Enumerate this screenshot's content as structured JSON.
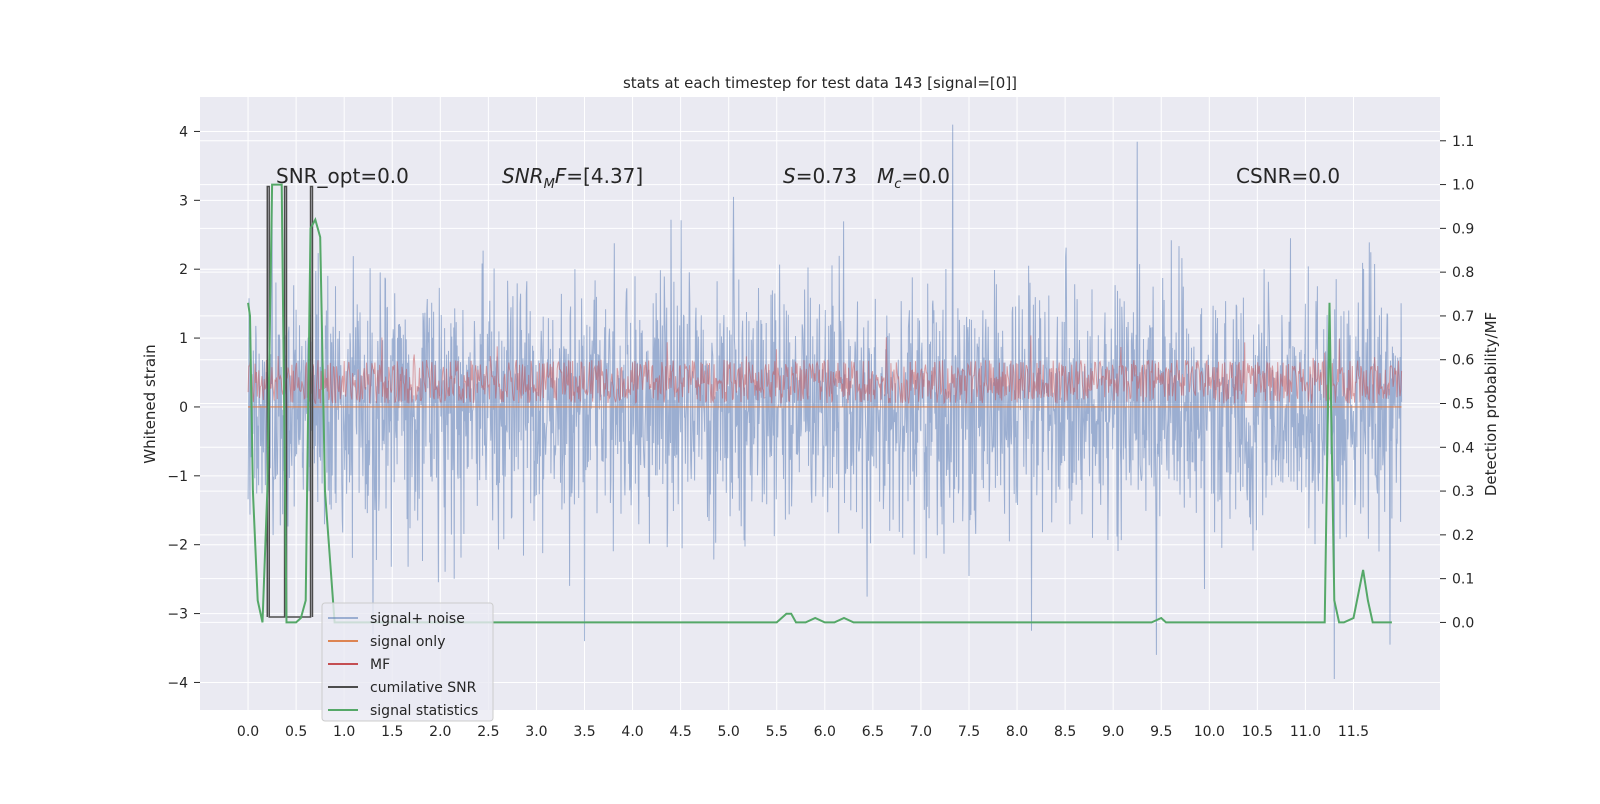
{
  "chart_data": {
    "type": "line",
    "title": "stats at each timestep for test data 143 [signal=[0]]",
    "xlabel": "",
    "ylabel": "Whitened strain",
    "ylabel_right": "Detection probability/MF",
    "xlim": [
      -0.5,
      12.4
    ],
    "ylim": [
      -4.4,
      4.5
    ],
    "ylim_right": [
      -0.2,
      1.2
    ],
    "x_ticks": [
      "0.0",
      "0.5",
      "1.0",
      "1.5",
      "2.0",
      "2.5",
      "3.0",
      "3.5",
      "4.0",
      "4.5",
      "5.0",
      "5.5",
      "6.0",
      "6.5",
      "7.0",
      "7.5",
      "8.0",
      "8.5",
      "9.0",
      "9.5",
      "10.0",
      "10.5",
      "11.0",
      "11.5"
    ],
    "y_ticks_left": [
      "4",
      "3",
      "2",
      "1",
      "0",
      "−1",
      "−2",
      "−3",
      "−4"
    ],
    "y_ticks_right": [
      "1.1",
      "1.0",
      "0.9",
      "0.8",
      "0.7",
      "0.6",
      "0.5",
      "0.4",
      "0.3",
      "0.2",
      "0.1",
      "0.0"
    ],
    "grid": true,
    "legend_position": "lower-left",
    "annotations": {
      "snr_opt": "SNR_opt=0.0",
      "snr_mf": "=[4.37]",
      "s_value": "=0.73",
      "mc_value": "=0.0",
      "csnr": "CSNR=0.0"
    },
    "series": [
      {
        "name": "signal+ noise",
        "color": "#4c72b0",
        "axis": "left",
        "x_range": [
          0.0,
          12.0
        ],
        "envelope_typical": [
          -2.0,
          2.0
        ],
        "spikes": [
          [
            0.25,
            3.2
          ],
          [
            0.4,
            -3.0
          ],
          [
            1.3,
            -3.3
          ],
          [
            3.5,
            -3.4
          ],
          [
            5.05,
            3.05
          ],
          [
            7.33,
            4.1
          ],
          [
            8.15,
            -3.25
          ],
          [
            9.25,
            3.85
          ],
          [
            9.45,
            -3.6
          ],
          [
            11.3,
            -3.95
          ],
          [
            11.88,
            -3.45
          ]
        ]
      },
      {
        "name": "signal only",
        "color": "#dd8452",
        "axis": "left",
        "x": [
          0.0,
          12.0
        ],
        "y": [
          0.0,
          0.0
        ]
      },
      {
        "name": "MF",
        "color": "#c44e52",
        "axis": "right",
        "band": [
          0.5,
          0.6
        ]
      },
      {
        "name": "cumilative SNR",
        "color": "#4c4c4c",
        "axis": "left",
        "x": [
          0.2,
          0.2,
          0.22,
          0.22,
          0.38,
          0.38,
          0.4,
          0.4,
          0.65,
          0.65,
          0.67,
          0.67
        ],
        "y": [
          -3.05,
          3.2,
          3.2,
          -3.05,
          -3.05,
          3.2,
          3.2,
          -3.05,
          -3.05,
          3.2,
          3.2,
          -3.05
        ]
      },
      {
        "name": "signal statistics",
        "color": "#55a868",
        "axis": "right",
        "x": [
          0.0,
          0.02,
          0.05,
          0.1,
          0.15,
          0.2,
          0.25,
          0.3,
          0.35,
          0.4,
          0.45,
          0.5,
          0.55,
          0.6,
          0.65,
          0.7,
          0.75,
          0.8,
          0.9,
          1.0,
          5.5,
          5.6,
          5.65,
          5.7,
          5.8,
          5.9,
          6.0,
          6.1,
          6.2,
          6.3,
          6.4,
          6.5,
          9.4,
          9.5,
          9.55,
          11.2,
          11.25,
          11.3,
          11.35,
          11.4,
          11.5,
          11.6,
          11.65,
          11.7,
          11.8,
          11.9
        ],
        "y": [
          0.73,
          0.7,
          0.3,
          0.05,
          0.0,
          0.3,
          1.0,
          1.0,
          1.0,
          0.0,
          0.0,
          0.0,
          0.01,
          0.05,
          0.9,
          0.92,
          0.88,
          0.3,
          0.0,
          0.0,
          0.0,
          0.02,
          0.02,
          0.0,
          0.0,
          0.01,
          0.0,
          0.0,
          0.01,
          0.0,
          0.0,
          0.0,
          0.0,
          0.01,
          0.0,
          0.0,
          0.73,
          0.05,
          0.0,
          0.0,
          0.01,
          0.12,
          0.05,
          0.0,
          0.0,
          0.0
        ]
      }
    ]
  }
}
